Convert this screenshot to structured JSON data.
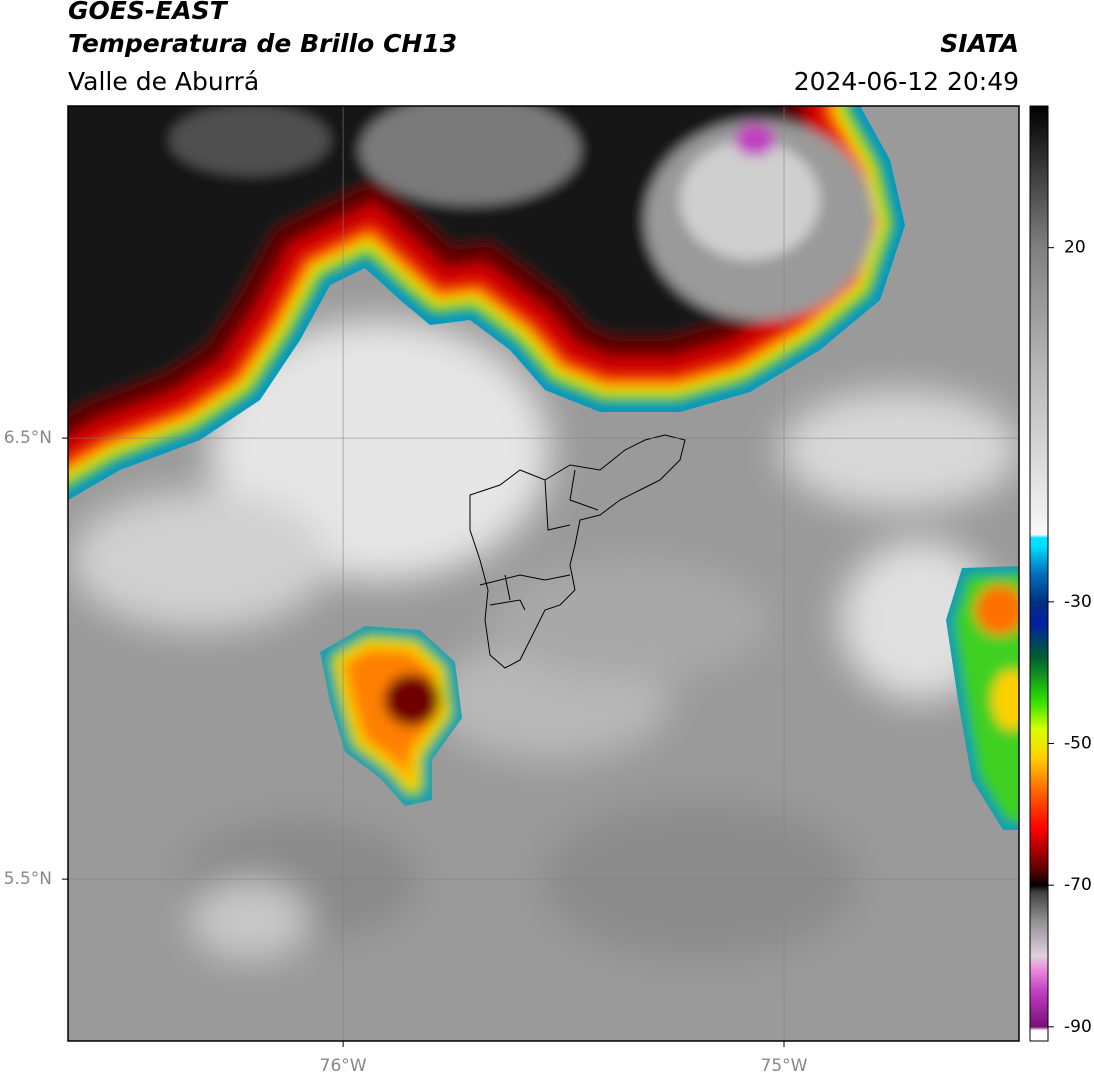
{
  "header": {
    "title": "GOES-EAST",
    "subtitle": "Temperatura de Brillo CH13",
    "region": "Valle de Aburrá",
    "source": "SIATA",
    "timestamp": "2024-06-12 20:49"
  },
  "map": {
    "xlim": [
      -76.624,
      -74.467
    ],
    "ylim": [
      5.133,
      7.253
    ],
    "xticks": [
      {
        "value": -76,
        "label": "76°W"
      },
      {
        "value": -75,
        "label": "75°W"
      }
    ],
    "yticks": [
      {
        "value": 6.5,
        "label": "6.5°N"
      },
      {
        "value": 5.5,
        "label": "5.5°N"
      }
    ],
    "grid": true
  },
  "colorbar": {
    "ylim": [
      -92,
      40
    ],
    "ticks": [
      20,
      -30,
      -50,
      -70,
      -90
    ],
    "stops": [
      {
        "value": 40,
        "color": "#000000"
      },
      {
        "value": 30,
        "color": "#404040"
      },
      {
        "value": 20,
        "color": "#808080"
      },
      {
        "value": 5,
        "color": "#b0b0b0"
      },
      {
        "value": -20.5,
        "color": "#f8f8f8"
      },
      {
        "value": -21,
        "color": "#00e0ff"
      },
      {
        "value": -22,
        "color": "#00e0ff"
      },
      {
        "value": -26,
        "color": "#0070c0"
      },
      {
        "value": -30,
        "color": "#003080"
      },
      {
        "value": -33,
        "color": "#0020a0"
      },
      {
        "value": -38,
        "color": "#006030"
      },
      {
        "value": -44,
        "color": "#30e000"
      },
      {
        "value": -48,
        "color": "#d8ff00"
      },
      {
        "value": -52,
        "color": "#ffd000"
      },
      {
        "value": -57,
        "color": "#ff6000"
      },
      {
        "value": -62,
        "color": "#ff0000"
      },
      {
        "value": -68,
        "color": "#5a0000"
      },
      {
        "value": -70,
        "color": "#000000"
      },
      {
        "value": -71,
        "color": "#404040"
      },
      {
        "value": -75,
        "color": "#909090"
      },
      {
        "value": -80,
        "color": "#e0d0e0"
      },
      {
        "value": -82,
        "color": "#ee88dd"
      },
      {
        "value": -85,
        "color": "#c040c0"
      },
      {
        "value": -90,
        "color": "#7a0f7a"
      },
      {
        "value": -90.5,
        "color": "#ffffff"
      },
      {
        "value": -92,
        "color": "#ffffff"
      }
    ]
  }
}
